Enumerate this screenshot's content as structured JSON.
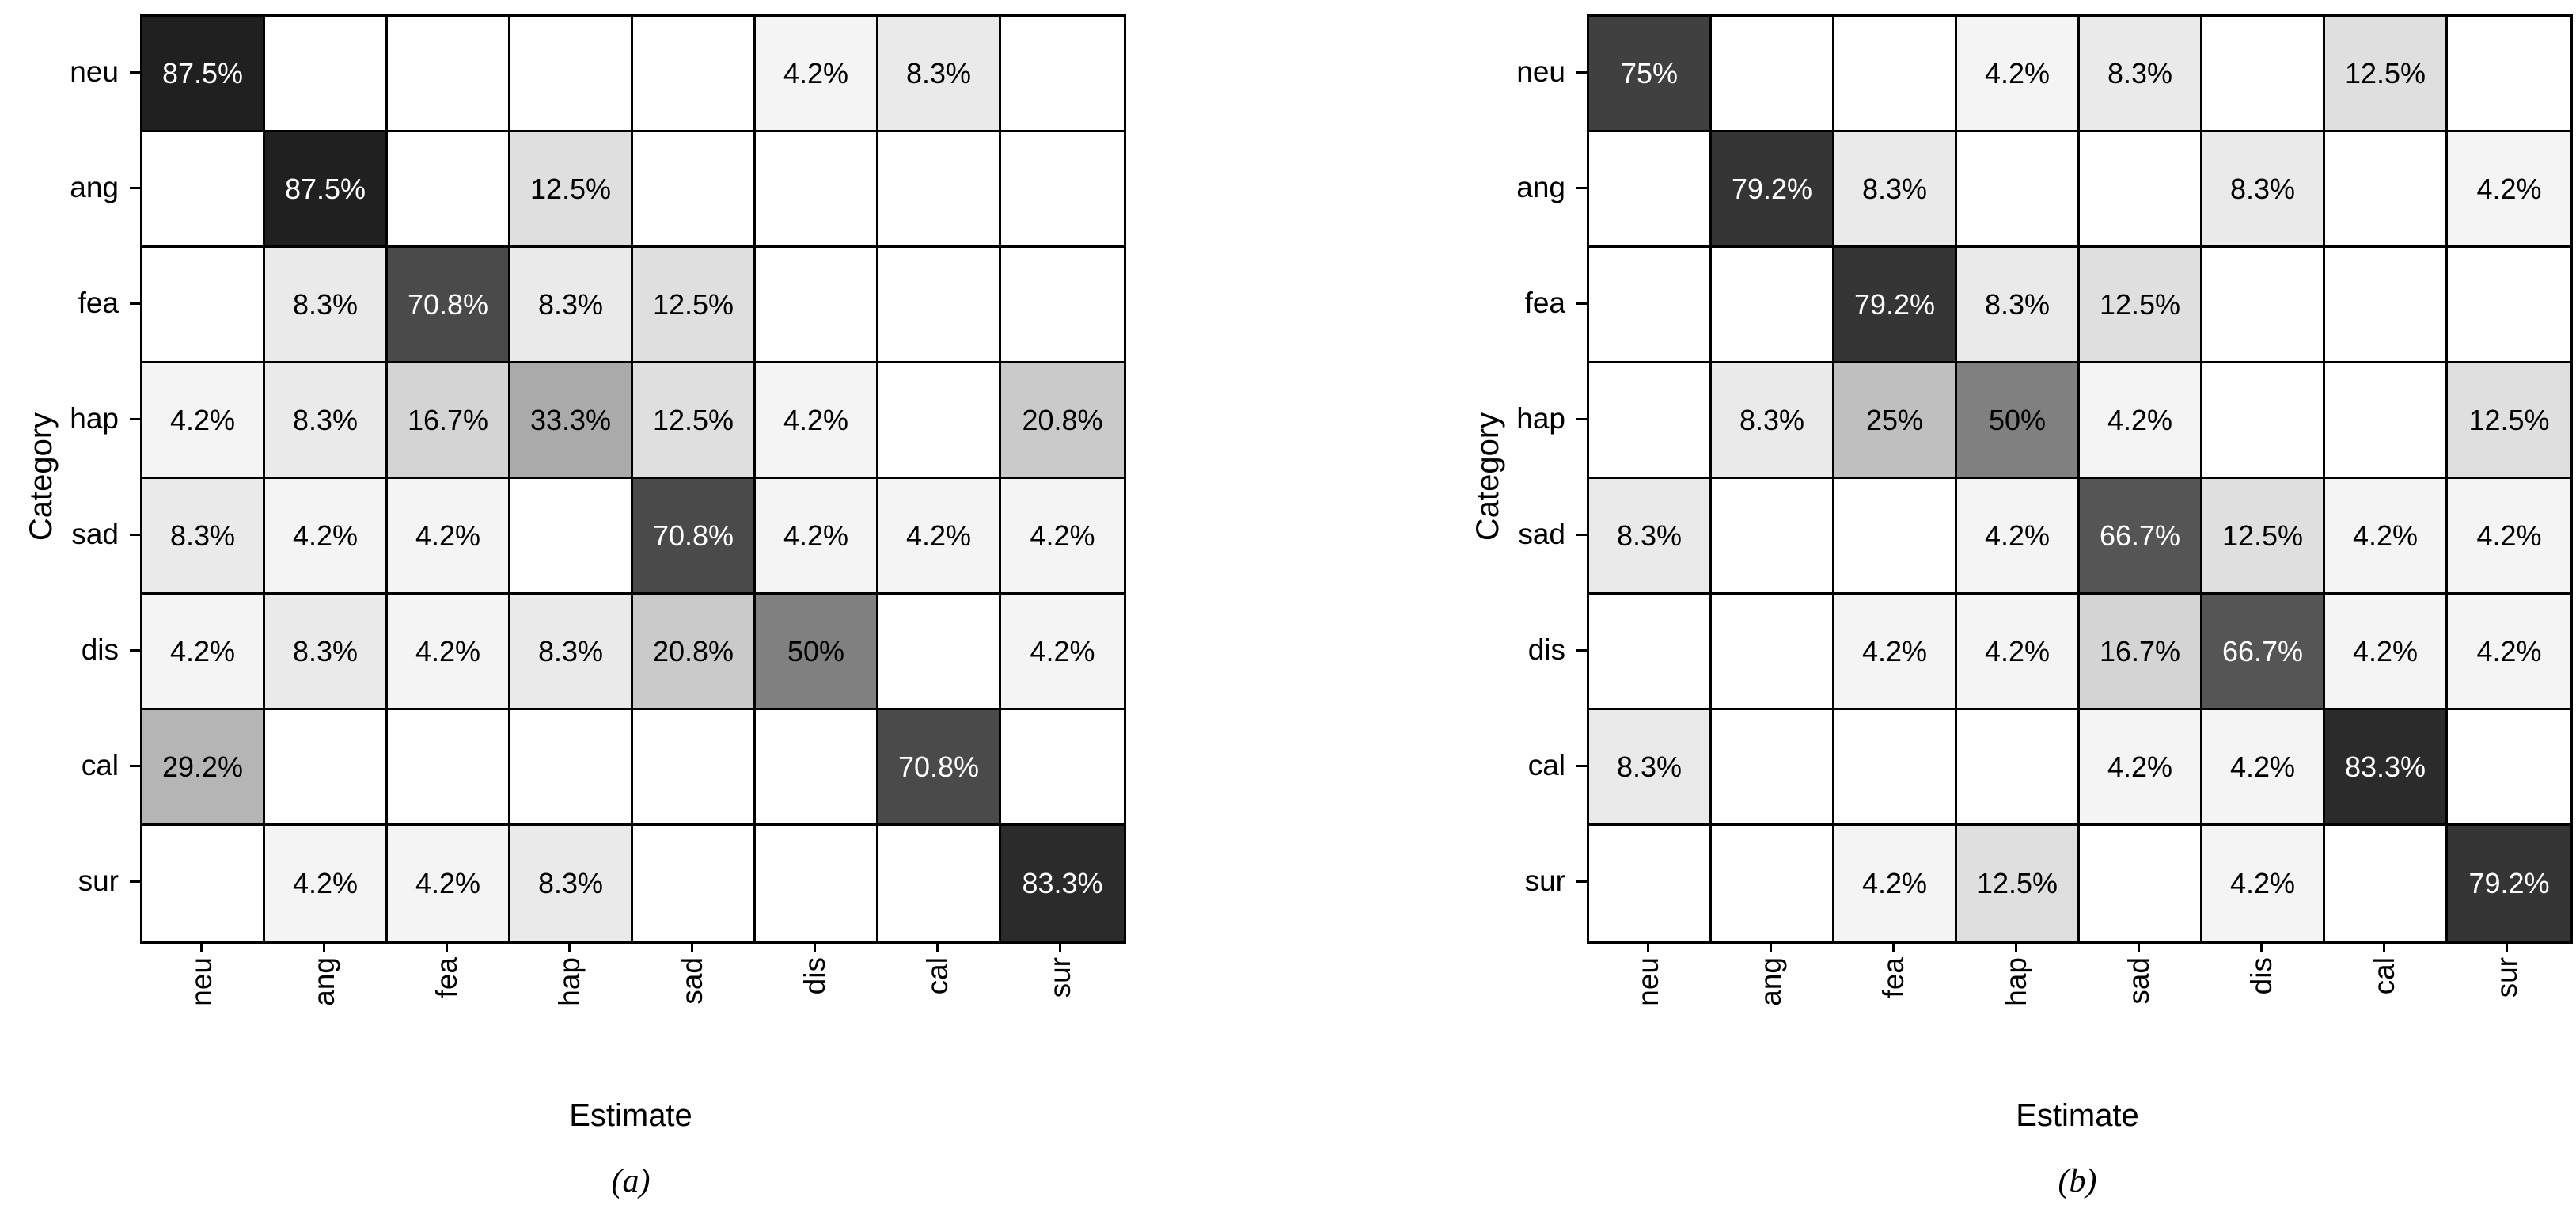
{
  "chart_data": [
    {
      "type": "heatmap",
      "caption": "(a)",
      "xlabel": "Estimate",
      "ylabel": "Category",
      "x_categories": [
        "neu",
        "ang",
        "fea",
        "hap",
        "sad",
        "dis",
        "cal",
        "sur"
      ],
      "y_categories": [
        "neu",
        "ang",
        "fea",
        "hap",
        "sad",
        "dis",
        "cal",
        "sur"
      ],
      "unit": "%",
      "colormap": "linear greyscale: 0% = #ffffff, 100% = #000000",
      "grid_color": "#000000",
      "white_text_threshold_pct": 60,
      "values": [
        [
          87.5,
          null,
          null,
          null,
          null,
          4.2,
          8.3,
          null
        ],
        [
          null,
          87.5,
          null,
          12.5,
          null,
          null,
          null,
          null
        ],
        [
          null,
          8.3,
          70.8,
          8.3,
          12.5,
          null,
          null,
          null
        ],
        [
          4.2,
          8.3,
          16.7,
          33.3,
          12.5,
          4.2,
          null,
          20.8
        ],
        [
          8.3,
          4.2,
          4.2,
          null,
          70.8,
          4.2,
          4.2,
          4.2
        ],
        [
          4.2,
          8.3,
          4.2,
          8.3,
          20.8,
          50,
          null,
          4.2
        ],
        [
          29.2,
          null,
          null,
          null,
          null,
          null,
          70.8,
          null
        ],
        [
          null,
          4.2,
          4.2,
          8.3,
          null,
          null,
          null,
          83.3
        ]
      ]
    },
    {
      "type": "heatmap",
      "caption": "(b)",
      "xlabel": "Estimate",
      "ylabel": "Category",
      "x_categories": [
        "neu",
        "ang",
        "fea",
        "hap",
        "sad",
        "dis",
        "cal",
        "sur"
      ],
      "y_categories": [
        "neu",
        "ang",
        "fea",
        "hap",
        "sad",
        "dis",
        "cal",
        "sur"
      ],
      "unit": "%",
      "colormap": "linear greyscale: 0% = #ffffff, 100% = #000000",
      "grid_color": "#000000",
      "white_text_threshold_pct": 60,
      "values": [
        [
          75,
          null,
          null,
          4.2,
          8.3,
          null,
          12.5,
          null
        ],
        [
          null,
          79.2,
          8.3,
          null,
          null,
          8.3,
          null,
          4.2
        ],
        [
          null,
          null,
          79.2,
          8.3,
          12.5,
          null,
          null,
          null
        ],
        [
          null,
          8.3,
          25,
          50,
          4.2,
          null,
          null,
          12.5
        ],
        [
          8.3,
          null,
          null,
          4.2,
          66.7,
          12.5,
          4.2,
          4.2
        ],
        [
          null,
          null,
          4.2,
          4.2,
          16.7,
          66.7,
          4.2,
          4.2
        ],
        [
          8.3,
          null,
          null,
          null,
          4.2,
          4.2,
          83.3,
          null
        ],
        [
          null,
          null,
          4.2,
          12.5,
          null,
          4.2,
          null,
          79.2
        ]
      ]
    }
  ]
}
